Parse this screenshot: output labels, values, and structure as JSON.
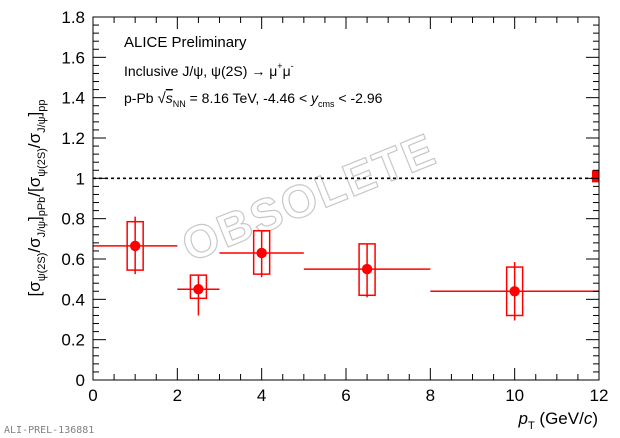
{
  "chart_data": {
    "type": "scatter",
    "title": "",
    "xlabel": "p",
    "xlabel_sub": "T",
    "xlabel_unit": "(GeV/c)",
    "xlim": [
      0,
      12
    ],
    "ylim": [
      0,
      1.8
    ],
    "x_ticks": [
      0,
      2,
      4,
      6,
      8,
      10,
      12
    ],
    "y_ticks": [
      0,
      0.2,
      0.4,
      0.6,
      0.8,
      1,
      1.2,
      1.4,
      1.6,
      1.8
    ],
    "ylabel": "[σψ(2S)/σJ/ψ]pPb/[σψ(2S)/σJ/ψ]pp",
    "reference_line": 1,
    "global_uncertainty": [
      0.98,
      1.04
    ],
    "series": [
      {
        "color": "#ff0000",
        "points": [
          {
            "x": 1.0,
            "y": 0.665,
            "xerr": [
              0,
              2
            ],
            "stat": [
              0.525,
              0.81
            ],
            "syst": [
              0.545,
              0.785
            ]
          },
          {
            "x": 2.5,
            "y": 0.45,
            "xerr": [
              2,
              3
            ],
            "stat": [
              0.32,
              0.52
            ],
            "syst": [
              0.405,
              0.52
            ]
          },
          {
            "x": 4.0,
            "y": 0.63,
            "xerr": [
              3,
              5
            ],
            "stat": [
              0.51,
              0.74
            ],
            "syst": [
              0.525,
              0.74
            ]
          },
          {
            "x": 6.5,
            "y": 0.55,
            "xerr": [
              5,
              8
            ],
            "stat": [
              0.41,
              0.675
            ],
            "syst": [
              0.42,
              0.675
            ]
          },
          {
            "x": 10.0,
            "y": 0.44,
            "xerr": [
              8,
              12
            ],
            "stat": [
              0.295,
              0.585
            ],
            "syst": [
              0.32,
              0.56
            ]
          }
        ]
      }
    ]
  },
  "annotations": {
    "preliminary": "ALICE Preliminary",
    "line2": "Inclusive J/ψ, ψ(2S) → μ+μ-",
    "line3": "p-Pb √sNN = 8.16 TeV, -4.46 < ycms < -2.96",
    "watermark": "OBSOLETE",
    "figure_id": "ALI-PREL-136881"
  }
}
